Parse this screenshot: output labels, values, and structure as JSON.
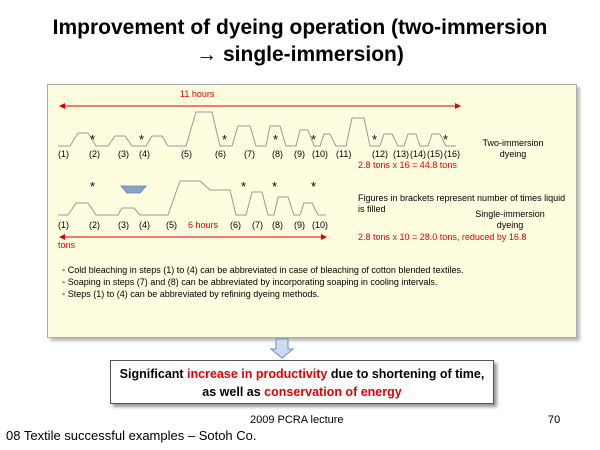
{
  "title": {
    "line1": "Improvement of dyeing operation (two-immersion",
    "line2": "→ single-immersion)"
  },
  "diagram": {
    "time_label": "11 hours",
    "two_immersion": {
      "step_labels": [
        "(1)",
        "(2)",
        "(3)",
        "(4)",
        "(5)",
        "(6)",
        "(7)",
        "(8)",
        "(9)",
        "(10)",
        "(11)",
        "(12)",
        "(13)",
        "(14)",
        "(15)",
        "(16)"
      ],
      "label": "Two-immersion dyeing",
      "calc": "2.8 tons x 16 = 44.8 tons"
    },
    "single_immersion": {
      "step_labels": [
        "(1)",
        "(2)",
        "(3)",
        "(4)",
        "(5)",
        "(6)",
        "(7)",
        "(8)",
        "(9)",
        "(10)"
      ],
      "time_label": "6 hours",
      "label": "Single-immersion dyeing",
      "calc": "2.8 tons x 10 = 28.0 tons, reduced by 16.8",
      "calc_cont": "tons"
    },
    "marker": "*",
    "legend_note": "Figures in brackets represent number of times liquid is filled",
    "bullets": [
      "Cold bleaching in steps (1) to (4) can be abbreviated in case of bleaching of cotton blended textiles.",
      "Soaping in steps (7) and (8) can be abbreviated by incorporating soaping in cooling intervals.",
      "Steps (1) to (4) can be abbreviated by refining dyeing methods."
    ]
  },
  "result": {
    "part1": "Significant ",
    "highlight1": "increase in productivity",
    "part2": " due to shortening of time, as well as ",
    "highlight2": "conservation of energy"
  },
  "footer": {
    "lecture": "2009 PCRA lecture",
    "page": "70",
    "caption": "08 Textile successful examples – Sotoh Co."
  }
}
